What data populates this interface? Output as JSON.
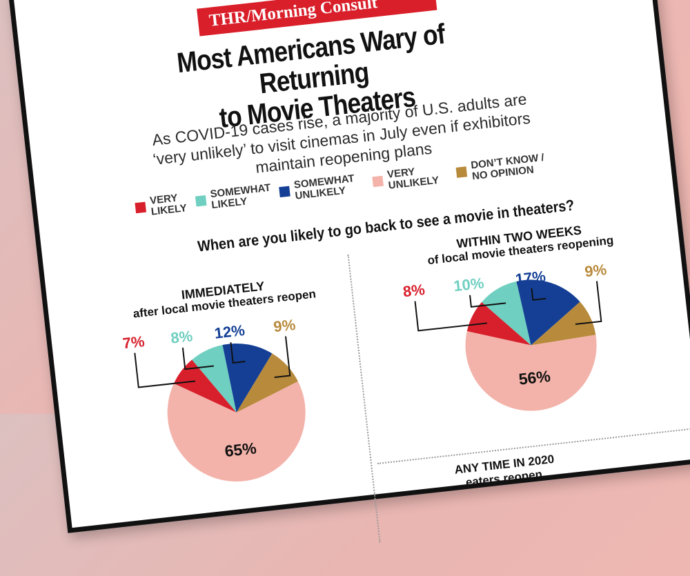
{
  "brand": "THR/Morning Consult",
  "title_line1": "Most Americans Wary of Returning",
  "title_line2": "to Movie Theaters",
  "subtitle": "As COVID-19 cases rise, a majority of U.S. adults are ‘very unlikely’ to visit cinemas in July even if exhibitors maintain reopening plans",
  "legend": [
    {
      "label_line1": "VERY",
      "label_line2": "LIKELY",
      "color": "#d7202c"
    },
    {
      "label_line1": "SOMEWHAT",
      "label_line2": "LIKELY",
      "color": "#6fcfc0"
    },
    {
      "label_line1": "SOMEWHAT",
      "label_line2": "UNLIKELY",
      "color": "#143f95"
    },
    {
      "label_line1": "VERY",
      "label_line2": "UNLIKELY",
      "color": "#f3b3aa"
    },
    {
      "label_line1": "DON’T KNOW /",
      "label_line2": "NO OPINION",
      "color": "#b88a3c"
    }
  ],
  "question": "When are you likely to go back to see a movie in theaters?",
  "chart_data": [
    {
      "type": "pie",
      "title": "IMMEDIATELY",
      "subtitle": "after local movie theaters reopen",
      "categories": [
        "VERY LIKELY",
        "SOMEWHAT LIKELY",
        "SOMEWHAT UNLIKELY",
        "DON’T KNOW / NO OPINION",
        "VERY UNLIKELY"
      ],
      "values": [
        7,
        8,
        12,
        9,
        65
      ],
      "labels": [
        "7%",
        "8%",
        "12%",
        "9%",
        "65%"
      ]
    },
    {
      "type": "pie",
      "title": "WITHIN TWO WEEKS",
      "subtitle": "of local movie theaters reopening",
      "categories": [
        "VERY LIKELY",
        "SOMEWHAT LIKELY",
        "SOMEWHAT UNLIKELY",
        "DON’T KNOW / NO OPINION",
        "VERY UNLIKELY"
      ],
      "values": [
        8,
        10,
        17,
        9,
        56
      ],
      "labels": [
        "8%",
        "10%",
        "17%",
        "9%",
        "56%"
      ]
    }
  ],
  "partial_third_title": "ANY TIME IN 2020",
  "partial_third_subtitle": "...eaters reopen"
}
